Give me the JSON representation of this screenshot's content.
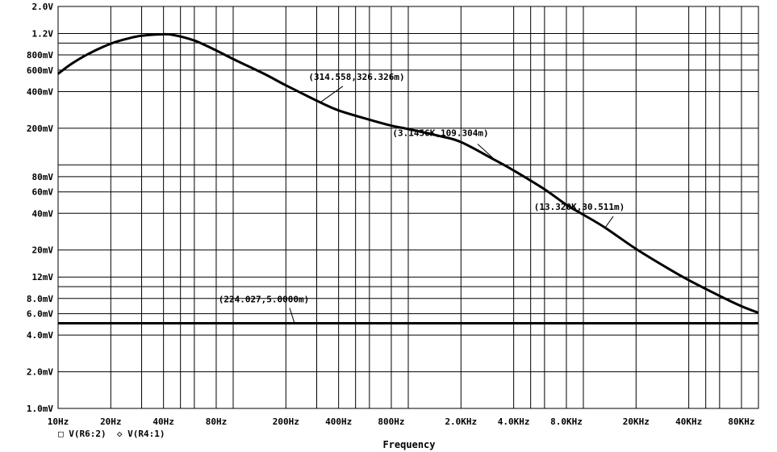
{
  "chart_data": {
    "type": "line",
    "x_scale": "log",
    "y_scale": "log",
    "xlabel": "Frequency",
    "xlim": [
      10,
      100000
    ],
    "ylim": [
      0.001,
      2.0
    ],
    "grid": true,
    "x_ticks": [
      {
        "value": 10,
        "label": "10Hz"
      },
      {
        "value": 20,
        "label": "20Hz"
      },
      {
        "value": 40,
        "label": "40Hz"
      },
      {
        "value": 80,
        "label": "80Hz"
      },
      {
        "value": 200,
        "label": "200Hz"
      },
      {
        "value": 400,
        "label": "400Hz"
      },
      {
        "value": 800,
        "label": "800Hz"
      },
      {
        "value": 2000,
        "label": "2.0KHz"
      },
      {
        "value": 4000,
        "label": "4.0KHz"
      },
      {
        "value": 8000,
        "label": "8.0KHz"
      },
      {
        "value": 20000,
        "label": "20KHz"
      },
      {
        "value": 40000,
        "label": "40KHz"
      },
      {
        "value": 80000,
        "label": "80KHz"
      }
    ],
    "y_ticks": [
      {
        "value": 2.0,
        "label": "2.0V"
      },
      {
        "value": 1.2,
        "label": "1.2V"
      },
      {
        "value": 0.8,
        "label": "800mV"
      },
      {
        "value": 0.6,
        "label": "600mV"
      },
      {
        "value": 0.4,
        "label": "400mV"
      },
      {
        "value": 0.2,
        "label": "200mV"
      },
      {
        "value": 0.08,
        "label": "80mV"
      },
      {
        "value": 0.06,
        "label": "60mV"
      },
      {
        "value": 0.04,
        "label": "40mV"
      },
      {
        "value": 0.02,
        "label": "20mV"
      },
      {
        "value": 0.012,
        "label": "12mV"
      },
      {
        "value": 0.008,
        "label": "8.0mV"
      },
      {
        "value": 0.006,
        "label": "6.0mV"
      },
      {
        "value": 0.004,
        "label": "4.0mV"
      },
      {
        "value": 0.002,
        "label": "2.0mV"
      },
      {
        "value": 0.001,
        "label": "1.0mV"
      }
    ],
    "series": [
      {
        "name": "V(R6:2)",
        "marker": "square",
        "x": [
          10,
          12,
          15,
          20,
          25,
          30,
          38,
          45,
          60,
          80,
          100,
          150,
          200,
          314.558,
          400,
          600,
          800,
          1000,
          1500,
          2000,
          3145.6,
          4000,
          6000,
          8000,
          10000,
          13320,
          20000,
          30000,
          40000,
          60000,
          80000,
          100000
        ],
        "values": [
          0.56,
          0.68,
          0.82,
          0.99,
          1.09,
          1.15,
          1.18,
          1.17,
          1.05,
          0.87,
          0.74,
          0.56,
          0.45,
          0.326,
          0.28,
          0.235,
          0.21,
          0.197,
          0.173,
          0.154,
          0.109,
          0.09,
          0.063,
          0.047,
          0.039,
          0.0305,
          0.0204,
          0.0143,
          0.0113,
          0.0084,
          0.0069,
          0.0061
        ]
      },
      {
        "name": "V(R4:1)",
        "marker": "diamond",
        "x": [
          10,
          100000
        ],
        "values": [
          0.005,
          0.005
        ]
      }
    ],
    "annotations": [
      {
        "text": "(314.558,326.326m)",
        "x": 314.558,
        "y": 0.326326
      },
      {
        "text": "(3.1456K,109.304m)",
        "x": 3145.6,
        "y": 0.109304
      },
      {
        "text": "(13.320K,30.511m)",
        "x": 13320,
        "y": 0.030511
      },
      {
        "text": "(224.027,5.0000m)",
        "x": 224.027,
        "y": 0.005
      }
    ]
  },
  "legend": {
    "items": [
      {
        "symbol": "□",
        "label": "V(R6:2)"
      },
      {
        "symbol": "◇",
        "label": "V(R4:1)"
      }
    ]
  }
}
